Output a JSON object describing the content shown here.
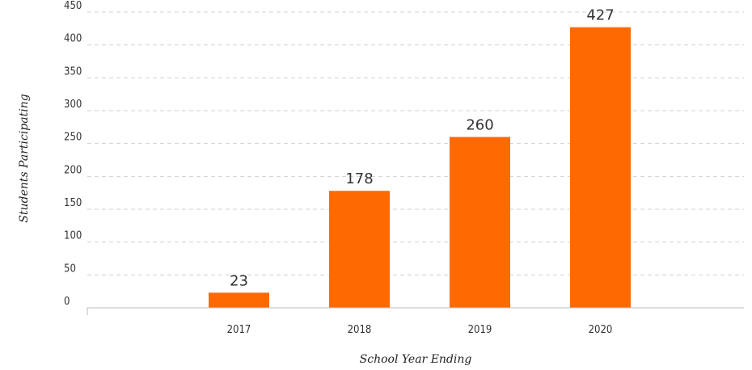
{
  "chart_data": {
    "type": "bar",
    "categories": [
      "2017",
      "2018",
      "2019",
      "2020"
    ],
    "values": [
      23,
      178,
      260,
      427
    ],
    "data_labels": [
      "23",
      "178",
      "260",
      "427"
    ],
    "title": "",
    "xlabel": "School Year Ending",
    "ylabel": "Students Participating",
    "ylim": [
      0,
      450
    ],
    "yticks": [
      "0",
      "50",
      "100",
      "150",
      "200",
      "250",
      "300",
      "350",
      "400",
      "450"
    ],
    "grid": "horizontal dashed",
    "legend": "none",
    "colors": {
      "bar": "#ff6a00",
      "grid": "#d0d0d0",
      "axis": "#bbbbbb",
      "text": "#333333"
    }
  }
}
